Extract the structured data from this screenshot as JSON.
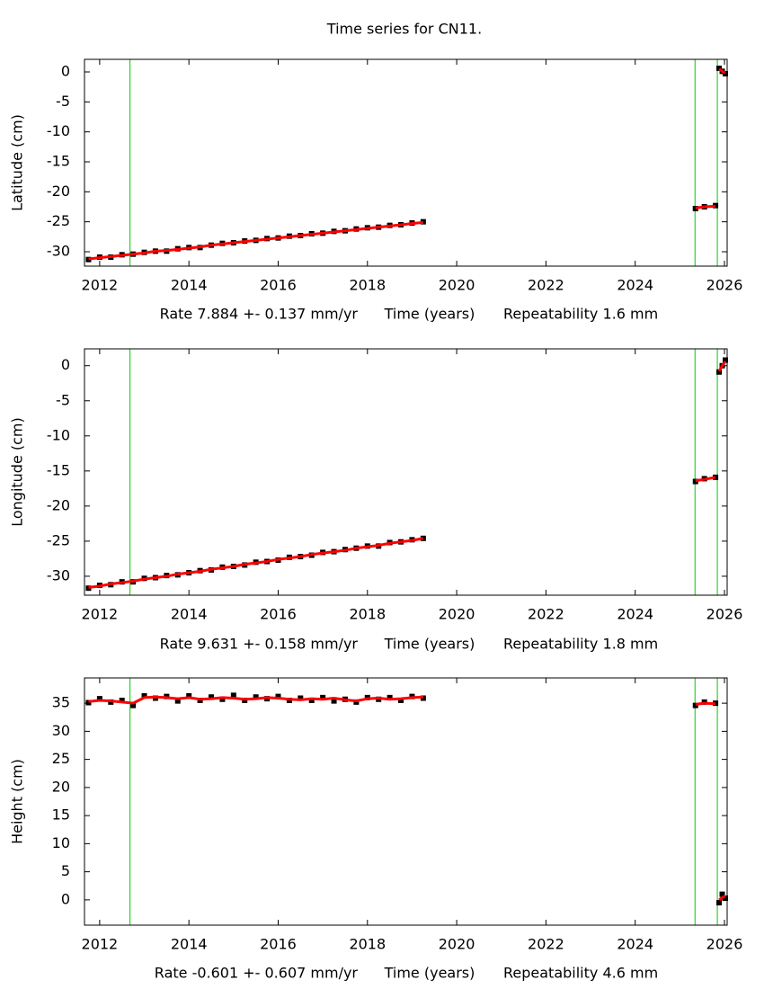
{
  "chart_data": [
    {
      "type": "scatter",
      "title": "Time series for CN11.",
      "ylabel": "Latitude (cm)",
      "rate": "Rate 7.884 +- 0.137 mm/yr",
      "xlabel": "Time (years)",
      "repeatability": "Repeatability 1.6 mm",
      "xlim": [
        2011.66,
        2026.06
      ],
      "ylim": [
        -32.4,
        2.1
      ],
      "xticks": [
        2012,
        2014,
        2016,
        2018,
        2020,
        2022,
        2024,
        2026
      ],
      "yticks": [
        0,
        -5,
        -10,
        -15,
        -20,
        -25,
        -30
      ],
      "vlines": [
        2012.68,
        2025.34,
        2025.84
      ],
      "vline_color": "#00cc00",
      "x": [
        2011.75,
        2012.0,
        2012.25,
        2012.5,
        2012.75,
        2013.0,
        2013.25,
        2013.5,
        2013.75,
        2014.0,
        2014.25,
        2014.5,
        2014.75,
        2015.0,
        2015.25,
        2015.5,
        2015.75,
        2016.0,
        2016.25,
        2016.5,
        2016.75,
        2017.0,
        2017.25,
        2017.5,
        2017.75,
        2018.0,
        2018.25,
        2018.5,
        2018.75,
        2019.0,
        2019.25,
        2022.0,
        2025.35,
        2025.55,
        2025.8,
        2025.84,
        2025.88,
        2025.95,
        2026.02
      ],
      "series": [
        {
          "color": "#000000",
          "values": [
            -31.3,
            -30.9,
            -30.9,
            -30.5,
            -30.4,
            -30.1,
            -29.9,
            -29.9,
            -29.5,
            -29.3,
            -29.3,
            -28.9,
            -28.6,
            -28.5,
            -28.2,
            -28.1,
            -27.8,
            -27.7,
            -27.4,
            -27.3,
            -27.0,
            -26.9,
            -26.6,
            -26.5,
            -26.2,
            -26.0,
            -25.9,
            -25.6,
            -25.5,
            -25.2,
            -25.0,
            null,
            -22.8,
            -22.5,
            -22.3,
            null,
            0.6,
            0.1,
            -0.3
          ]
        },
        {
          "color": "#ff0000",
          "values": [
            -31.2,
            -31.0,
            -30.8,
            -30.6,
            -30.4,
            -30.2,
            -29.9,
            -29.8,
            -29.6,
            -29.4,
            -29.2,
            -28.9,
            -28.7,
            -28.5,
            -28.3,
            -28.1,
            -27.9,
            -27.7,
            -27.5,
            -27.3,
            -27.1,
            -26.9,
            -26.7,
            -26.5,
            -26.3,
            -26.1,
            -25.9,
            -25.7,
            -25.5,
            -25.3,
            -25.1,
            null,
            -22.7,
            -22.5,
            -22.4,
            null,
            0.5,
            0.1,
            -0.2
          ]
        }
      ]
    },
    {
      "type": "scatter",
      "ylabel": "Longitude (cm)",
      "rate": "Rate 9.631 +- 0.158 mm/yr",
      "xlabel": "Time (years)",
      "repeatability": "Repeatability 1.8 mm",
      "xlim": [
        2011.66,
        2026.06
      ],
      "ylim": [
        -32.7,
        2.4
      ],
      "xticks": [
        2012,
        2014,
        2016,
        2018,
        2020,
        2022,
        2024,
        2026
      ],
      "yticks": [
        0,
        -5,
        -10,
        -15,
        -20,
        -25,
        -30
      ],
      "vlines": [
        2012.68,
        2025.34,
        2025.84
      ],
      "vline_color": "#00cc00",
      "x": [
        2011.75,
        2012.0,
        2012.25,
        2012.5,
        2012.75,
        2013.0,
        2013.25,
        2013.5,
        2013.75,
        2014.0,
        2014.25,
        2014.5,
        2014.75,
        2015.0,
        2015.25,
        2015.5,
        2015.75,
        2016.0,
        2016.25,
        2016.5,
        2016.75,
        2017.0,
        2017.25,
        2017.5,
        2017.75,
        2018.0,
        2018.25,
        2018.5,
        2018.75,
        2019.0,
        2019.25,
        2022.0,
        2025.35,
        2025.55,
        2025.8,
        2025.84,
        2025.88,
        2025.95,
        2026.02
      ],
      "series": [
        {
          "color": "#000000",
          "values": [
            -31.7,
            -31.3,
            -31.2,
            -30.8,
            -30.8,
            -30.3,
            -30.2,
            -29.9,
            -29.8,
            -29.5,
            -29.2,
            -29.1,
            -28.7,
            -28.6,
            -28.4,
            -28.0,
            -27.9,
            -27.7,
            -27.3,
            -27.2,
            -27.0,
            -26.6,
            -26.5,
            -26.2,
            -26.0,
            -25.7,
            -25.7,
            -25.2,
            -25.1,
            -24.8,
            -24.6,
            null,
            -16.5,
            -16.1,
            -15.9,
            null,
            -0.9,
            0.0,
            0.8
          ]
        },
        {
          "color": "#ff0000",
          "values": [
            -31.6,
            -31.4,
            -31.1,
            -30.9,
            -30.7,
            -30.4,
            -30.2,
            -30.0,
            -29.7,
            -29.5,
            -29.3,
            -29.0,
            -28.8,
            -28.6,
            -28.3,
            -28.1,
            -27.9,
            -27.6,
            -27.4,
            -27.2,
            -26.9,
            -26.7,
            -26.5,
            -26.3,
            -26.0,
            -25.8,
            -25.6,
            -25.3,
            -25.1,
            -24.9,
            -24.6,
            null,
            -16.4,
            -16.2,
            -15.9,
            null,
            -0.8,
            0.0,
            0.6
          ]
        }
      ]
    },
    {
      "type": "scatter",
      "ylabel": "Height (cm)",
      "rate": "Rate -0.601 +- 0.607 mm/yr",
      "xlabel": "Time (years)",
      "repeatability": "Repeatability 4.6 mm",
      "xlim": [
        2011.66,
        2026.06
      ],
      "ylim": [
        -4.5,
        39.5
      ],
      "xticks": [
        2012,
        2014,
        2016,
        2018,
        2020,
        2022,
        2024,
        2026
      ],
      "yticks": [
        35,
        30,
        25,
        20,
        15,
        10,
        5,
        0
      ],
      "vlines": [
        2012.68,
        2025.34,
        2025.84
      ],
      "vline_color": "#00cc00",
      "x": [
        2011.75,
        2012.0,
        2012.25,
        2012.5,
        2012.75,
        2013.0,
        2013.25,
        2013.5,
        2013.75,
        2014.0,
        2014.25,
        2014.5,
        2014.75,
        2015.0,
        2015.25,
        2015.5,
        2015.75,
        2016.0,
        2016.25,
        2016.5,
        2016.75,
        2017.0,
        2017.25,
        2017.5,
        2017.75,
        2018.0,
        2018.25,
        2018.5,
        2018.75,
        2019.0,
        2019.25,
        2022.0,
        2025.35,
        2025.55,
        2025.8,
        2025.84,
        2025.88,
        2025.95,
        2026.02
      ],
      "series": [
        {
          "color": "#000000",
          "values": [
            35.1,
            35.8,
            35.2,
            35.5,
            34.6,
            36.3,
            35.9,
            36.2,
            35.4,
            36.3,
            35.5,
            36.1,
            35.7,
            36.4,
            35.5,
            36.1,
            35.8,
            36.2,
            35.5,
            35.9,
            35.5,
            36.0,
            35.4,
            35.7,
            35.2,
            36.0,
            35.7,
            36.0,
            35.5,
            36.2,
            35.9,
            null,
            34.6,
            35.2,
            35.0,
            null,
            -0.5,
            1.0,
            0.3
          ]
        },
        {
          "color": "#ff0000",
          "values": [
            35.3,
            35.5,
            35.4,
            35.2,
            35.0,
            36.0,
            36.1,
            36.0,
            35.8,
            36.0,
            35.7,
            35.8,
            36.0,
            35.9,
            35.7,
            35.8,
            36.0,
            35.9,
            35.7,
            35.6,
            35.8,
            35.7,
            35.9,
            35.6,
            35.4,
            35.8,
            35.9,
            35.7,
            35.8,
            36.0,
            36.1,
            null,
            34.8,
            35.0,
            34.9,
            null,
            0.0,
            0.4,
            0.7
          ]
        }
      ]
    }
  ]
}
